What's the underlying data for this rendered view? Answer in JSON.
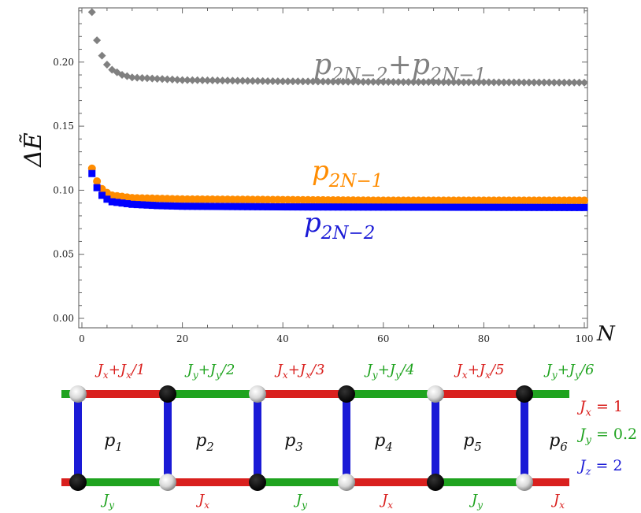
{
  "chart_data": {
    "type": "scatter",
    "xlabel": "N",
    "ylabel": "ΔẼ",
    "xlim": [
      0,
      100
    ],
    "ylim": [
      0,
      0.25
    ],
    "x_ticks": [
      "0",
      "20",
      "40",
      "60",
      "80",
      "100"
    ],
    "y_ticks": [
      "0.00",
      "0.05",
      "0.10",
      "0.15",
      "0.20"
    ],
    "series": [
      {
        "name": "p2N−2+p2N−1",
        "label_main": "p",
        "label_sub": "2N−2",
        "label_plus": "+",
        "label_main2": "p",
        "label_sub2": "2N−1",
        "color": "#808080",
        "marker": "diamond",
        "x_range": [
          2,
          100
        ],
        "values_at": {
          "2": 0.239,
          "3": 0.217,
          "4": 0.205,
          "5": 0.198,
          "6": 0.194,
          "8": 0.19,
          "10": 0.188,
          "15": 0.187,
          "20": 0.186,
          "40": 0.185,
          "60": 0.1845,
          "100": 0.184
        }
      },
      {
        "name": "p2N−1",
        "label_main": "p",
        "label_sub": "2N−1",
        "color": "#ff8c00",
        "marker": "circle",
        "x_range": [
          2,
          100
        ],
        "values_at": {
          "2": 0.117,
          "3": 0.107,
          "4": 0.101,
          "5": 0.098,
          "6": 0.096,
          "8": 0.095,
          "10": 0.094,
          "15": 0.0935,
          "20": 0.093,
          "40": 0.0925,
          "60": 0.092,
          "100": 0.092
        }
      },
      {
        "name": "p2N−2",
        "label_main": "p",
        "label_sub": "2N−2",
        "color": "#0000ff",
        "marker": "square",
        "x_range": [
          2,
          100
        ],
        "values_at": {
          "2": 0.113,
          "3": 0.102,
          "4": 0.096,
          "5": 0.093,
          "6": 0.091,
          "8": 0.09,
          "10": 0.089,
          "15": 0.088,
          "20": 0.0875,
          "40": 0.087,
          "60": 0.0868,
          "100": 0.0865
        }
      }
    ]
  },
  "ladder": {
    "top_labels": [
      {
        "main": "J",
        "sub": "x",
        "mid": "+",
        "main2": "J",
        "sub2": "x",
        "tail": "/1",
        "color": "#d9201e"
      },
      {
        "main": "J",
        "sub": "y",
        "mid": "+",
        "main2": "J",
        "sub2": "y",
        "tail": "/2",
        "color": "#1fa31f"
      },
      {
        "main": "J",
        "sub": "x",
        "mid": "+",
        "main2": "J",
        "sub2": "x",
        "tail": "/3",
        "color": "#d9201e"
      },
      {
        "main": "J",
        "sub": "y",
        "mid": "+",
        "main2": "J",
        "sub2": "y",
        "tail": "/4",
        "color": "#1fa31f"
      },
      {
        "main": "J",
        "sub": "x",
        "mid": "+",
        "main2": "J",
        "sub2": "x",
        "tail": "/5",
        "color": "#d9201e"
      },
      {
        "main": "J",
        "sub": "y",
        "mid": "+",
        "main2": "J",
        "sub2": "y",
        "tail": "/6",
        "color": "#1fa31f"
      }
    ],
    "plaquettes": [
      {
        "main": "p",
        "sub": "1"
      },
      {
        "main": "p",
        "sub": "2"
      },
      {
        "main": "p",
        "sub": "3"
      },
      {
        "main": "p",
        "sub": "4"
      },
      {
        "main": "p",
        "sub": "5"
      },
      {
        "main": "p",
        "sub": "6"
      }
    ],
    "bottom_labels": [
      {
        "main": "J",
        "sub": "y",
        "color": "#1fa31f"
      },
      {
        "main": "J",
        "sub": "x",
        "color": "#d9201e"
      },
      {
        "main": "J",
        "sub": "y",
        "color": "#1fa31f"
      },
      {
        "main": "J",
        "sub": "x",
        "color": "#d9201e"
      },
      {
        "main": "J",
        "sub": "y",
        "color": "#1fa31f"
      },
      {
        "main": "J",
        "sub": "x",
        "color": "#d9201e"
      }
    ],
    "couplings": [
      {
        "main": "J",
        "sub": "x",
        "rest": " = 1",
        "color": "#d9201e"
      },
      {
        "main": "J",
        "sub": "y",
        "rest": " = 0.2",
        "color": "#1fa31f"
      },
      {
        "main": "J",
        "sub": "z",
        "rest": " = 2",
        "color": "#1a1ad6"
      }
    ],
    "colors": {
      "red": "#d9201e",
      "green": "#1fa31f",
      "blue": "#1a1ad6"
    }
  }
}
